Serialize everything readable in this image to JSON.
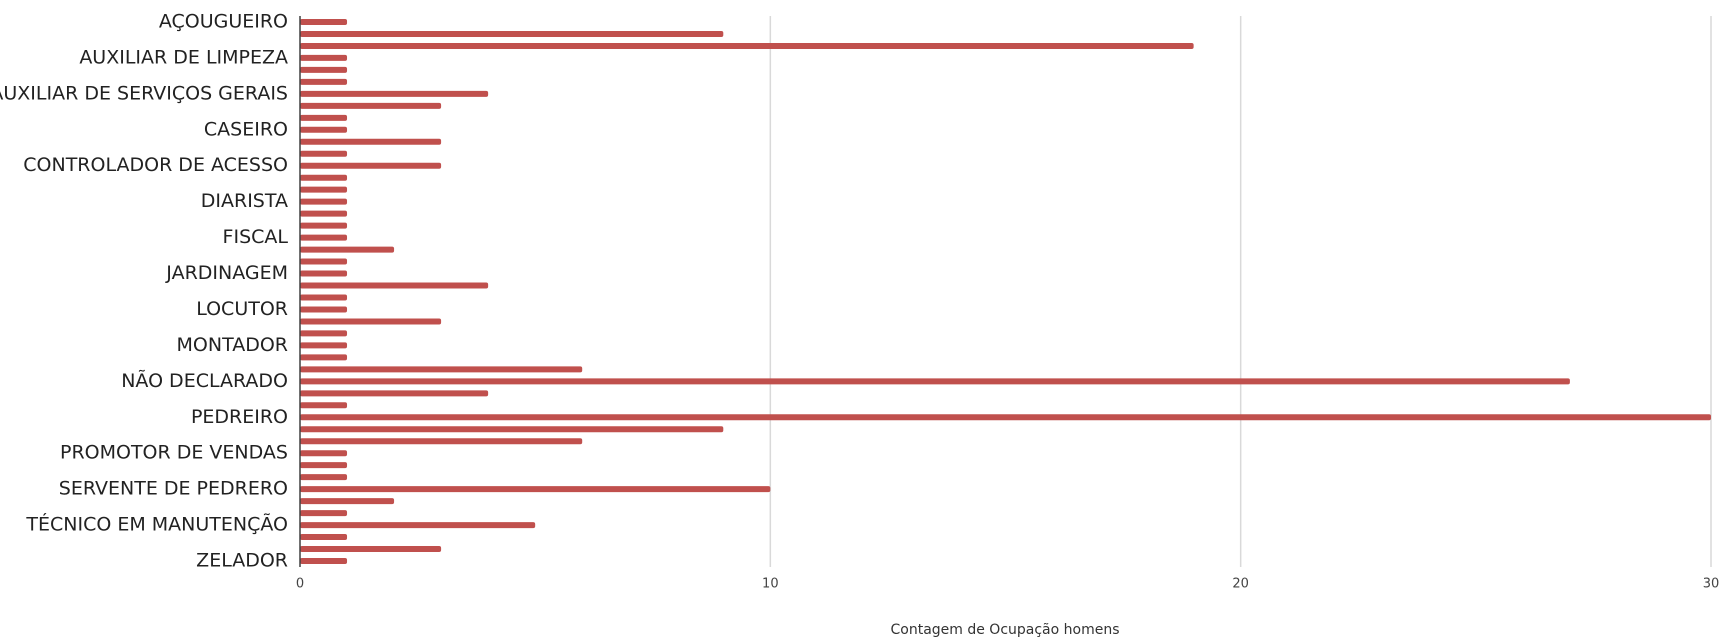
{
  "chart_data": {
    "type": "bar",
    "orientation": "horizontal",
    "x_label": "Contagem de Ocupação homens",
    "categories": [
      "AÇOUGUEIRO",
      null,
      null,
      "AUXILIAR DE LIMPEZA",
      null,
      null,
      "AUXILIAR DE SERVIÇOS GERAIS",
      null,
      null,
      "CASEIRO",
      null,
      null,
      "CONTROLADOR DE ACESSO",
      null,
      null,
      "DIARISTA",
      null,
      null,
      "FISCAL",
      null,
      null,
      "JARDINAGEM",
      null,
      null,
      "LOCUTOR",
      null,
      null,
      "MONTADOR",
      null,
      null,
      "NÃO DECLARADO",
      null,
      null,
      "PEDREIRO",
      null,
      null,
      "PROMOTOR DE VENDAS",
      null,
      null,
      "SERVENTE DE PEDRERO",
      null,
      null,
      "TÉCNICO EM MANUTENÇÃO",
      null,
      null,
      "ZELADOR"
    ],
    "values": [
      1,
      9,
      19,
      1,
      1,
      1,
      4,
      3,
      1,
      1,
      3,
      1,
      3,
      1,
      1,
      1,
      1,
      1,
      1,
      2,
      1,
      1,
      4,
      1,
      1,
      3,
      1,
      1,
      1,
      6,
      27,
      4,
      1,
      30,
      9,
      6,
      1,
      1,
      1,
      10,
      2,
      1,
      5,
      1,
      3,
      1
    ],
    "color": "#c0504d",
    "xlim": [
      0,
      30
    ],
    "xticks": [
      0,
      10,
      20,
      30
    ],
    "grid": true
  }
}
